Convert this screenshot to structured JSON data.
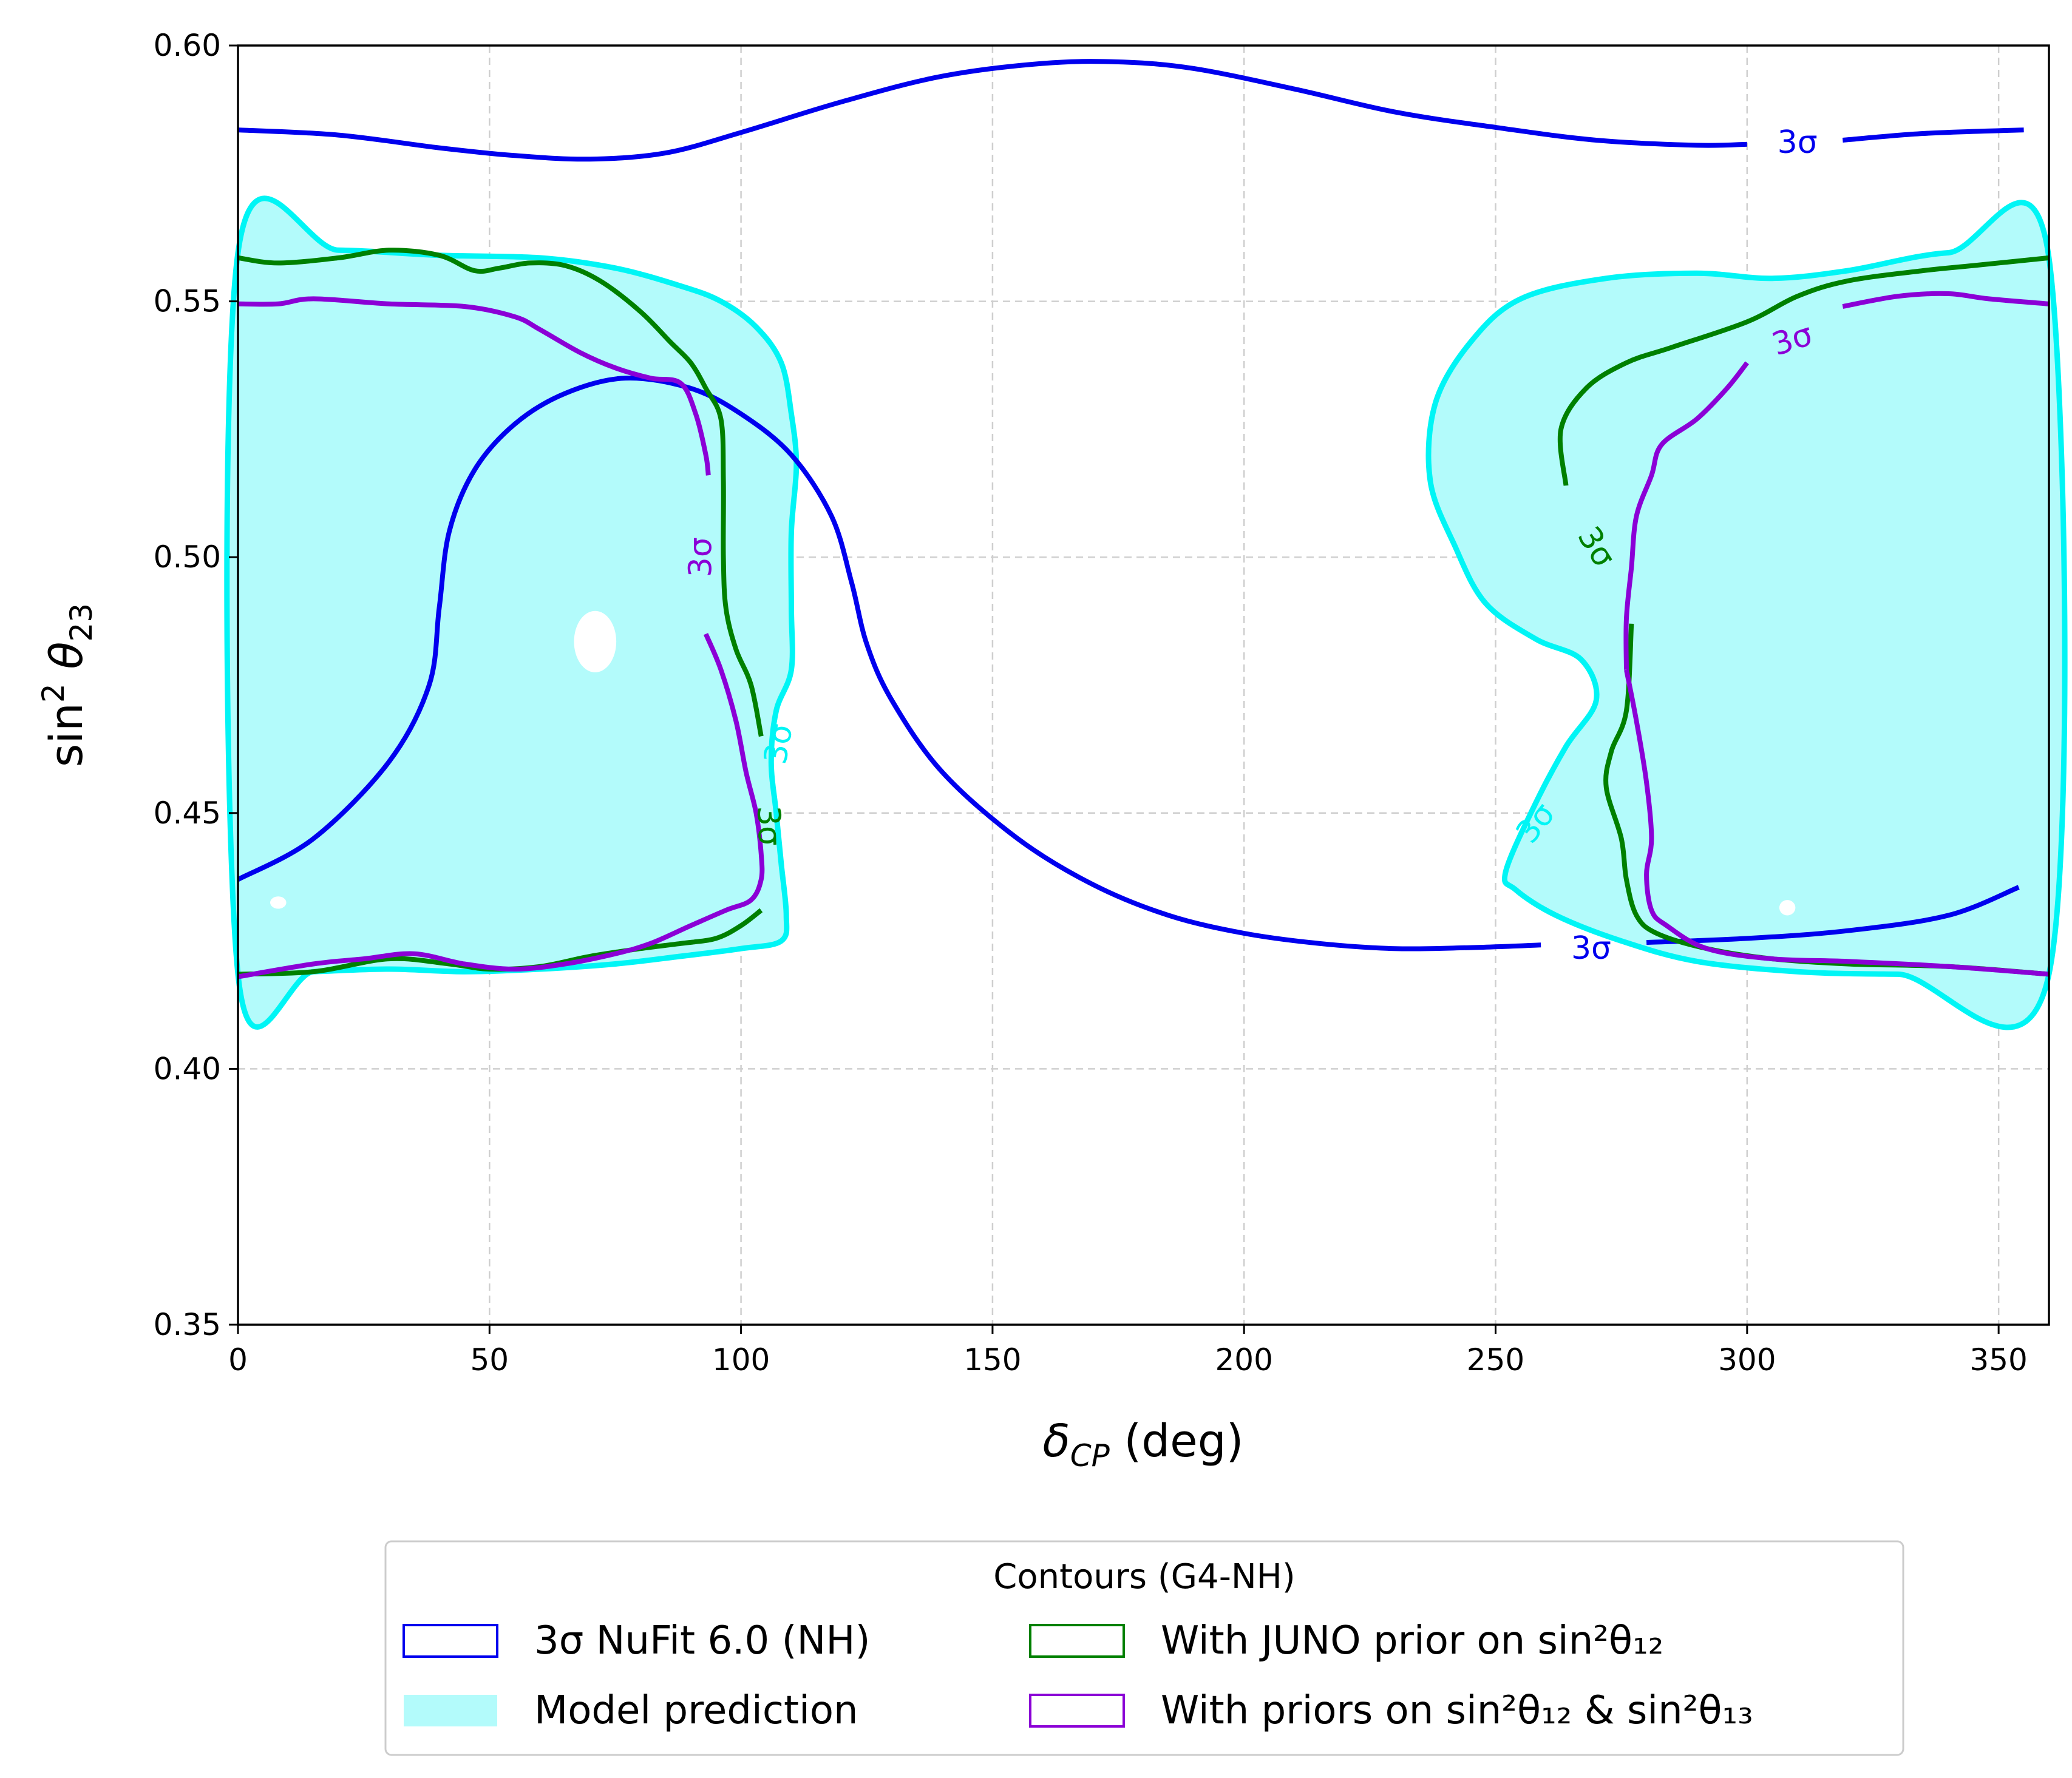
{
  "chart_data": {
    "type": "line",
    "title": "",
    "xlabel": "δ_CP (deg)",
    "ylabel": "sin²θ₂₃",
    "xlim": [
      0,
      360
    ],
    "ylim": [
      0.35,
      0.6
    ],
    "xticks": [
      0,
      50,
      100,
      150,
      200,
      250,
      300,
      350
    ],
    "xtick_labels": [
      "0",
      "50",
      "100",
      "150",
      "200",
      "250",
      "300",
      "350"
    ],
    "yticks": [
      0.35,
      0.4,
      0.45,
      0.5,
      0.55,
      0.6
    ],
    "ytick_labels": [
      "0.35",
      "0.40",
      "0.45",
      "0.50",
      "0.55",
      "0.60"
    ],
    "grid": true,
    "legend": {
      "title": "Contours (G4-NH)",
      "placement": "below plot",
      "entries": [
        {
          "label": "3σ NuFit 6.0 (NH)",
          "color": "#0000ee",
          "style": "outline"
        },
        {
          "label": "Model prediction",
          "color": "#b3fbfb",
          "style": "filled"
        },
        {
          "label": "With JUNO prior on sin²θ₁₂",
          "color": "#008000",
          "style": "outline"
        },
        {
          "label": "With priors on sin²θ₁₂ & sin²θ₁₃",
          "color": "#8b00d6",
          "style": "outline"
        }
      ]
    },
    "series": [
      {
        "name": "3σ NuFit 6.0 (NH) upper",
        "color": "#0000ee",
        "points": [
          [
            0,
            0.5835
          ],
          [
            20,
            0.5825
          ],
          [
            40,
            0.58
          ],
          [
            55,
            0.5785
          ],
          [
            70,
            0.5778
          ],
          [
            85,
            0.579
          ],
          [
            100,
            0.583
          ],
          [
            120,
            0.589
          ],
          [
            140,
            0.594
          ],
          [
            160,
            0.5965
          ],
          [
            175,
            0.5968
          ],
          [
            190,
            0.5955
          ],
          [
            210,
            0.5915
          ],
          [
            230,
            0.587
          ],
          [
            250,
            0.584
          ],
          [
            270,
            0.5815
          ],
          [
            290,
            0.5805
          ],
          [
            300,
            0.5807
          ]
        ]
      },
      {
        "name": "3σ NuFit 6.0 (NH) upper right",
        "color": "#0000ee",
        "points": [
          [
            319,
            0.5815
          ],
          [
            335,
            0.5828
          ],
          [
            355,
            0.5835
          ]
        ]
      },
      {
        "name": "3σ NuFit 6.0 (NH) main",
        "color": "#0000ee",
        "points": [
          [
            0,
            0.437
          ],
          [
            15,
            0.445
          ],
          [
            30,
            0.46
          ],
          [
            38,
            0.475
          ],
          [
            40,
            0.49
          ],
          [
            42,
            0.505
          ],
          [
            47,
            0.517
          ],
          [
            55,
            0.526
          ],
          [
            65,
            0.532
          ],
          [
            77,
            0.535
          ],
          [
            90,
            0.533
          ],
          [
            100,
            0.528
          ],
          [
            110,
            0.52
          ],
          [
            118,
            0.508
          ],
          [
            122,
            0.495
          ],
          [
            125,
            0.483
          ],
          [
            130,
            0.472
          ],
          [
            140,
            0.458
          ],
          [
            155,
            0.445
          ],
          [
            170,
            0.436
          ],
          [
            185,
            0.43
          ],
          [
            200,
            0.4265
          ],
          [
            215,
            0.4245
          ],
          [
            230,
            0.4235
          ],
          [
            245,
            0.4237
          ],
          [
            259,
            0.4242
          ]
        ]
      },
      {
        "name": "3σ NuFit 6.0 (NH) lower right",
        "color": "#0000ee",
        "points": [
          [
            280,
            0.4247
          ],
          [
            300,
            0.4255
          ],
          [
            320,
            0.427
          ],
          [
            340,
            0.43
          ],
          [
            354,
            0.4355
          ]
        ]
      },
      {
        "name": "With JUNO prior left",
        "color": "#008000",
        "points": [
          [
            0,
            0.5585
          ],
          [
            8,
            0.5575
          ],
          [
            20,
            0.5585
          ],
          [
            30,
            0.56
          ],
          [
            40,
            0.559
          ],
          [
            47,
            0.556
          ],
          [
            52,
            0.5565
          ],
          [
            58,
            0.5575
          ],
          [
            65,
            0.557
          ],
          [
            72,
            0.554
          ],
          [
            80,
            0.548
          ],
          [
            86,
            0.542
          ],
          [
            90,
            0.538
          ],
          [
            93,
            0.533
          ],
          [
            96,
            0.527
          ],
          [
            96.5,
            0.515
          ],
          [
            96.5,
            0.5
          ],
          [
            97,
            0.49
          ],
          [
            99,
            0.482
          ],
          [
            102,
            0.475
          ],
          [
            104,
            0.465
          ]
        ]
      },
      {
        "name": "With JUNO prior left bottom",
        "color": "#008000",
        "points": [
          [
            0,
            0.4185
          ],
          [
            15,
            0.419
          ],
          [
            30,
            0.4215
          ],
          [
            42,
            0.4205
          ],
          [
            50,
            0.4195
          ],
          [
            60,
            0.42
          ],
          [
            70,
            0.422
          ],
          [
            80,
            0.4235
          ],
          [
            88,
            0.4245
          ],
          [
            95,
            0.4255
          ],
          [
            100,
            0.428
          ],
          [
            104,
            0.431
          ]
        ]
      },
      {
        "name": "With JUNO prior right upper",
        "color": "#008000",
        "points": [
          [
            264,
            0.514
          ],
          [
            263,
            0.525
          ],
          [
            268,
            0.533
          ],
          [
            276,
            0.538
          ],
          [
            285,
            0.541
          ],
          [
            300,
            0.546
          ],
          [
            310,
            0.551
          ],
          [
            320,
            0.554
          ],
          [
            335,
            0.556
          ],
          [
            345,
            0.557
          ],
          [
            360,
            0.5585
          ]
        ]
      },
      {
        "name": "With JUNO prior right lower",
        "color": "#008000",
        "points": [
          [
            277,
            0.487
          ],
          [
            276,
            0.47
          ],
          [
            273,
            0.462
          ],
          [
            272,
            0.455
          ],
          [
            275,
            0.445
          ],
          [
            276,
            0.437
          ],
          [
            278,
            0.43
          ],
          [
            282,
            0.4265
          ],
          [
            292,
            0.4235
          ],
          [
            305,
            0.4215
          ],
          [
            320,
            0.4205
          ],
          [
            340,
            0.42
          ],
          [
            360,
            0.4185
          ]
        ]
      },
      {
        "name": "With priors on both left upper",
        "color": "#8b00d6",
        "points": [
          [
            0,
            0.5495
          ],
          [
            8,
            0.5495
          ],
          [
            15,
            0.5505
          ],
          [
            30,
            0.5495
          ],
          [
            45,
            0.549
          ],
          [
            55,
            0.547
          ],
          [
            60,
            0.5445
          ],
          [
            68,
            0.54
          ],
          [
            75,
            0.537
          ],
          [
            82,
            0.535
          ],
          [
            88,
            0.534
          ],
          [
            91,
            0.528
          ],
          [
            93,
            0.52
          ],
          [
            93.5,
            0.516
          ]
        ]
      },
      {
        "name": "With priors on both left lower",
        "color": "#8b00d6",
        "points": [
          [
            93,
            0.485
          ],
          [
            96,
            0.478
          ],
          [
            99,
            0.468
          ],
          [
            101,
            0.458
          ],
          [
            103,
            0.45
          ],
          [
            104,
            0.442
          ],
          [
            104,
            0.437
          ],
          [
            102,
            0.433
          ],
          [
            97,
            0.431
          ],
          [
            90,
            0.428
          ],
          [
            82,
            0.4245
          ],
          [
            75,
            0.4225
          ],
          [
            65,
            0.4205
          ],
          [
            55,
            0.4195
          ],
          [
            45,
            0.4205
          ],
          [
            35,
            0.4225
          ],
          [
            25,
            0.4215
          ],
          [
            15,
            0.4205
          ],
          [
            0,
            0.418
          ]
        ]
      },
      {
        "name": "With priors on both right upper",
        "color": "#8b00d6",
        "points": [
          [
            300,
            0.538
          ],
          [
            296,
            0.533
          ],
          [
            290,
            0.527
          ],
          [
            283,
            0.522
          ],
          [
            281,
            0.516
          ],
          [
            278,
            0.508
          ],
          [
            277,
            0.498
          ],
          [
            276,
            0.488
          ],
          [
            276,
            0.478
          ]
        ]
      },
      {
        "name": "With priors on both right lower",
        "color": "#8b00d6",
        "points": [
          [
            276,
            0.478
          ],
          [
            278,
            0.468
          ],
          [
            280,
            0.456
          ],
          [
            281,
            0.445
          ],
          [
            280,
            0.438
          ],
          [
            281,
            0.431
          ],
          [
            284,
            0.428
          ],
          [
            292,
            0.4235
          ],
          [
            305,
            0.4215
          ],
          [
            320,
            0.421
          ],
          [
            340,
            0.42
          ],
          [
            360,
            0.4185
          ]
        ]
      },
      {
        "name": "With priors on both right top",
        "color": "#8b00d6",
        "points": [
          [
            319,
            0.549
          ],
          [
            330,
            0.551
          ],
          [
            340,
            0.5515
          ],
          [
            348,
            0.5505
          ],
          [
            360,
            0.5495
          ]
        ]
      }
    ],
    "filled_regions": [
      {
        "name": "Model prediction left",
        "fill": "#b3fbfb",
        "edge": "#00f5f5",
        "points": [
          [
            0,
            0.5595
          ],
          [
            20,
            0.56
          ],
          [
            40,
            0.559
          ],
          [
            60,
            0.5585
          ],
          [
            75,
            0.5565
          ],
          [
            88,
            0.553
          ],
          [
            96,
            0.55
          ],
          [
            103,
            0.545
          ],
          [
            108,
            0.538
          ],
          [
            110,
            0.528
          ],
          [
            111,
            0.518
          ],
          [
            110,
            0.505
          ],
          [
            110,
            0.49
          ],
          [
            110,
            0.478
          ],
          [
            107,
            0.47
          ],
          [
            106,
            0.46
          ],
          [
            107,
            0.45
          ],
          [
            108,
            0.44
          ],
          [
            109,
            0.43
          ],
          [
            108,
            0.425
          ],
          [
            100,
            0.4235
          ],
          [
            88,
            0.422
          ],
          [
            75,
            0.4205
          ],
          [
            60,
            0.4195
          ],
          [
            45,
            0.419
          ],
          [
            30,
            0.4195
          ],
          [
            15,
            0.419
          ],
          [
            0,
            0.4185
          ]
        ]
      },
      {
        "name": "Model prediction right",
        "fill": "#b3fbfb",
        "edge": "#00f5f5",
        "points": [
          [
            252,
            0.4385
          ],
          [
            258,
            0.452
          ],
          [
            264,
            0.463
          ],
          [
            270,
            0.472
          ],
          [
            267,
            0.48
          ],
          [
            258,
            0.484
          ],
          [
            248,
            0.491
          ],
          [
            242,
            0.502
          ],
          [
            237,
            0.515
          ],
          [
            238,
            0.53
          ],
          [
            245,
            0.542
          ],
          [
            255,
            0.5505
          ],
          [
            272,
            0.5545
          ],
          [
            290,
            0.5555
          ],
          [
            305,
            0.5545
          ],
          [
            320,
            0.556
          ],
          [
            340,
            0.5595
          ],
          [
            360,
            0.5585
          ],
          [
            360,
            0.4185
          ],
          [
            330,
            0.4185
          ],
          [
            310,
            0.419
          ],
          [
            290,
            0.421
          ],
          [
            275,
            0.425
          ],
          [
            262,
            0.43
          ],
          [
            254,
            0.435
          ]
        ]
      }
    ],
    "contour_labels": [
      {
        "text": "3σ",
        "x": 310,
        "y": 0.581,
        "color": "#0000ee",
        "rotation": 0
      },
      {
        "text": "3σ",
        "x": 269,
        "y": 0.4235,
        "color": "#0000ee",
        "rotation": 0
      },
      {
        "text": "3σ",
        "x": 309,
        "y": 0.5425,
        "color": "#8b00d6",
        "rotation": -18
      },
      {
        "text": "3σ",
        "x": 92,
        "y": 0.5,
        "color": "#8b00d6",
        "rotation": -90
      },
      {
        "text": "3σ",
        "x": 107.5,
        "y": 0.4635,
        "color": "#00f5f5",
        "rotation": -80
      },
      {
        "text": "3σ",
        "x": 105.5,
        "y": 0.4475,
        "color": "#008000",
        "rotation": 88
      },
      {
        "text": "3σ",
        "x": 270,
        "y": 0.502,
        "color": "#008000",
        "rotation": 58
      },
      {
        "text": "3σ",
        "x": 258,
        "y": 0.448,
        "color": "#00f5f5",
        "rotation": -52
      }
    ],
    "holes": [
      {
        "x": 71,
        "y": 0.4835,
        "rx": 4.2,
        "ry": 0.006
      },
      {
        "x": 8,
        "y": 0.4325,
        "rx": 1.6,
        "ry": 0.0012
      },
      {
        "x": 308,
        "y": 0.4315,
        "rx": 1.6,
        "ry": 0.0015
      }
    ]
  }
}
